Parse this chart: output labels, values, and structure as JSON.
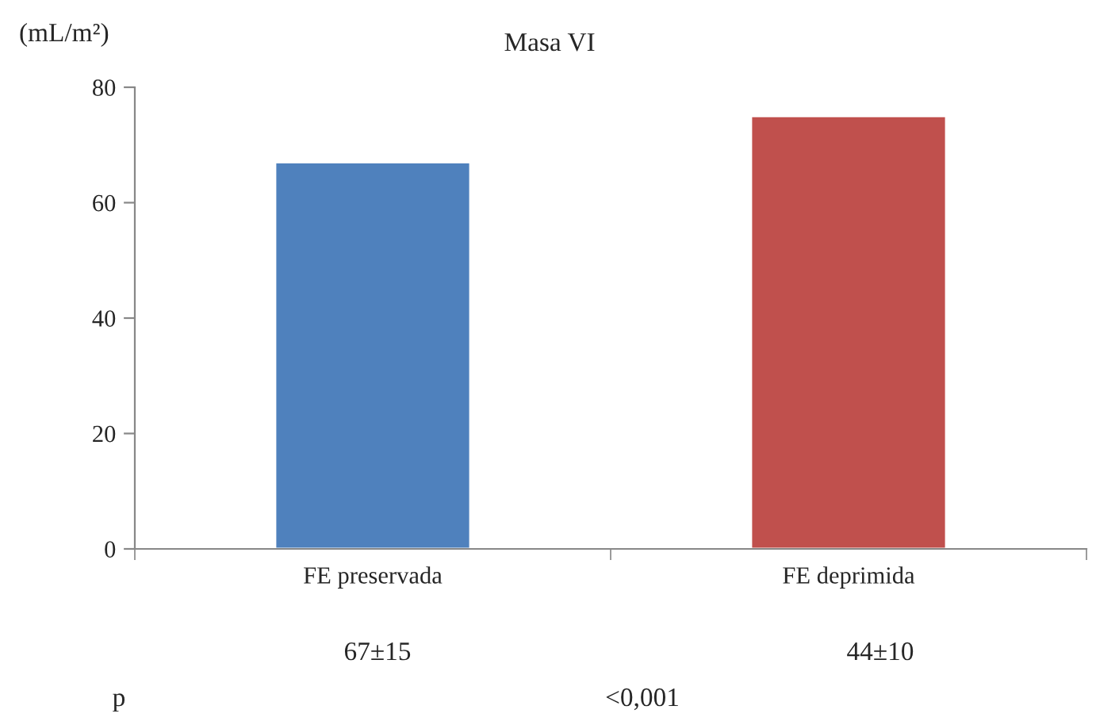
{
  "chart_data": {
    "type": "bar",
    "title": "Masa VI",
    "ylabel": "(mL/m²)",
    "categories": [
      "FE preservada",
      "FE deprimida"
    ],
    "values": [
      67,
      75
    ],
    "colors": [
      "#4f81bd",
      "#c0504d"
    ],
    "ylim": [
      0,
      80
    ],
    "yticks": [
      0,
      20,
      40,
      60,
      80
    ],
    "grid": false,
    "legend": false,
    "annotations": [
      "67±15",
      "44±10",
      "p",
      "<0,001"
    ]
  }
}
